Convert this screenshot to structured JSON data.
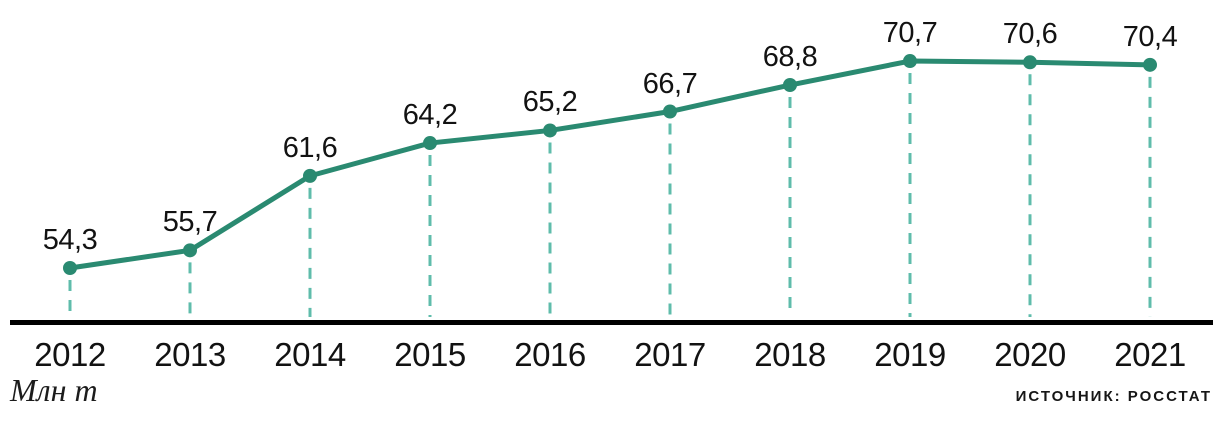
{
  "chart_data": {
    "type": "line",
    "title": "",
    "categories": [
      "2012",
      "2013",
      "2014",
      "2015",
      "2016",
      "2017",
      "2018",
      "2019",
      "2020",
      "2021"
    ],
    "values": [
      54.3,
      55.7,
      61.6,
      64.2,
      65.2,
      66.7,
      68.8,
      70.7,
      70.6,
      70.4
    ],
    "value_labels": [
      "54,3",
      "55,7",
      "61,6",
      "64,2",
      "65,2",
      "66,7",
      "68,8",
      "70,7",
      "70,6",
      "70,4"
    ],
    "xlabel": "",
    "ylabel": "Млн т",
    "ylim": [
      50,
      76
    ],
    "grid": "vertical-dashed-droplines",
    "legend": "none",
    "colors": {
      "line": "#2A8A71",
      "marker": "#2A8A71",
      "droplines": "#5FBCAB",
      "axis": "#000000",
      "text": "#121212"
    }
  },
  "footer": {
    "unit_label": "Млн т",
    "source_label": "ИСТОЧНИК: РОССТАТ"
  }
}
